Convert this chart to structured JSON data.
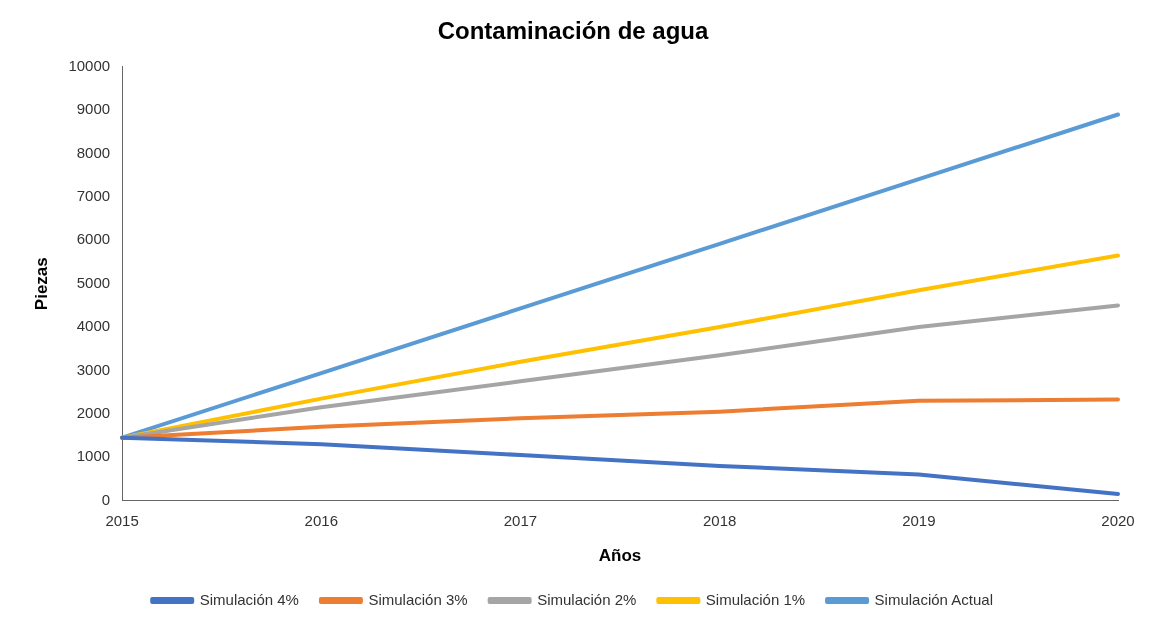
{
  "chart_data": {
    "type": "line",
    "title": "Contaminación de agua",
    "xlabel": "Años",
    "ylabel": "Piezas",
    "categories": [
      "2015",
      "2016",
      "2017",
      "2018",
      "2019",
      "2020"
    ],
    "series": [
      {
        "name": "Simulación 4%",
        "color": "#4472c4",
        "values": [
          1450,
          1300,
          1050,
          800,
          600,
          150
        ]
      },
      {
        "name": "Simulación 3%",
        "color": "#ed7d31",
        "values": [
          1450,
          1700,
          1900,
          2050,
          2300,
          2330
        ]
      },
      {
        "name": "Simulación 2%",
        "color": "#a5a5a5",
        "values": [
          1450,
          2150,
          2750,
          3350,
          4000,
          4500
        ]
      },
      {
        "name": "Simulación 1%",
        "color": "#ffc000",
        "values": [
          1450,
          2350,
          3200,
          4000,
          4850,
          5650
        ]
      },
      {
        "name": "Simulación Actual",
        "color": "#5b9bd5",
        "values": [
          1450,
          2940,
          4430,
          5920,
          7410,
          8900
        ]
      }
    ],
    "ylim": [
      0,
      10000
    ],
    "yticks": [
      0,
      1000,
      2000,
      3000,
      4000,
      5000,
      6000,
      7000,
      8000,
      9000,
      10000
    ],
    "grid": false,
    "legend": "bottom",
    "marker": "none",
    "line_style": "solid"
  }
}
